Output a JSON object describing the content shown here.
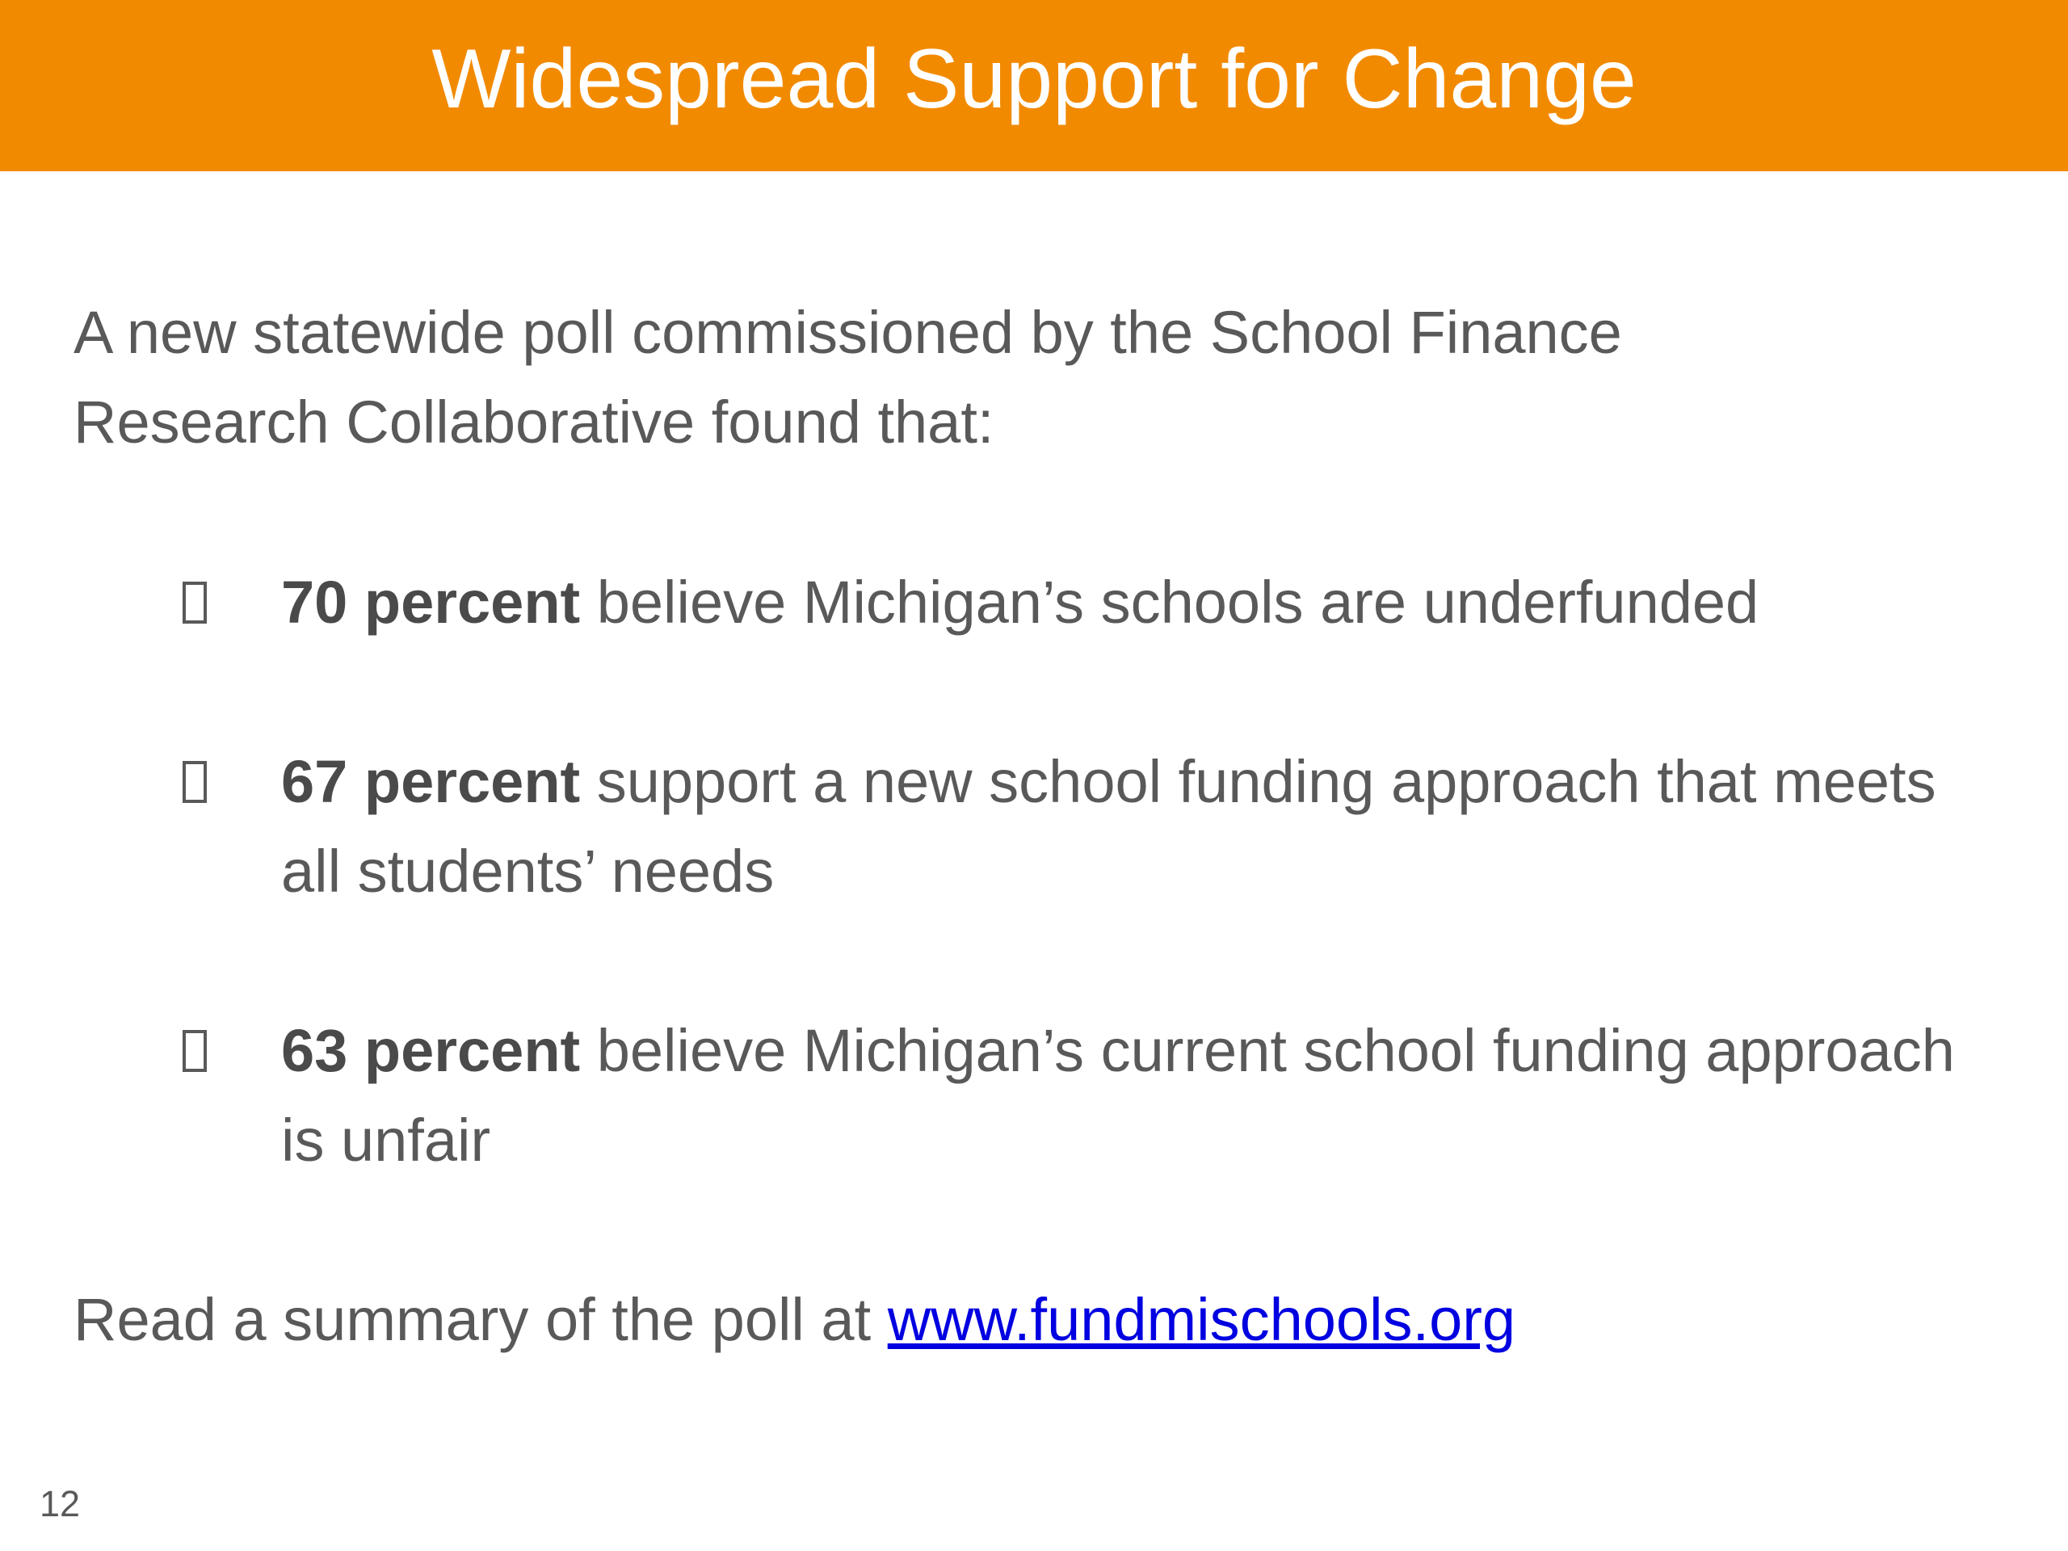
{
  "header": {
    "title": "Widespread Support for Change"
  },
  "intro": "A new statewide poll commissioned by the School Finance Research Collaborative found that:",
  "bullets": [
    {
      "bold": "70 percent",
      "text": "believe Michigan’s schools are underfunded"
    },
    {
      "bold": "67 percent",
      "text": "support a new school funding approach that meets all students’ needs"
    },
    {
      "bold": "63 percent",
      "text": "believe Michigan’s current school funding approach is unfair"
    }
  ],
  "footer": {
    "text": "Read a summary of the poll at",
    "link": "www.fundmischools.org"
  },
  "page_number": "12"
}
